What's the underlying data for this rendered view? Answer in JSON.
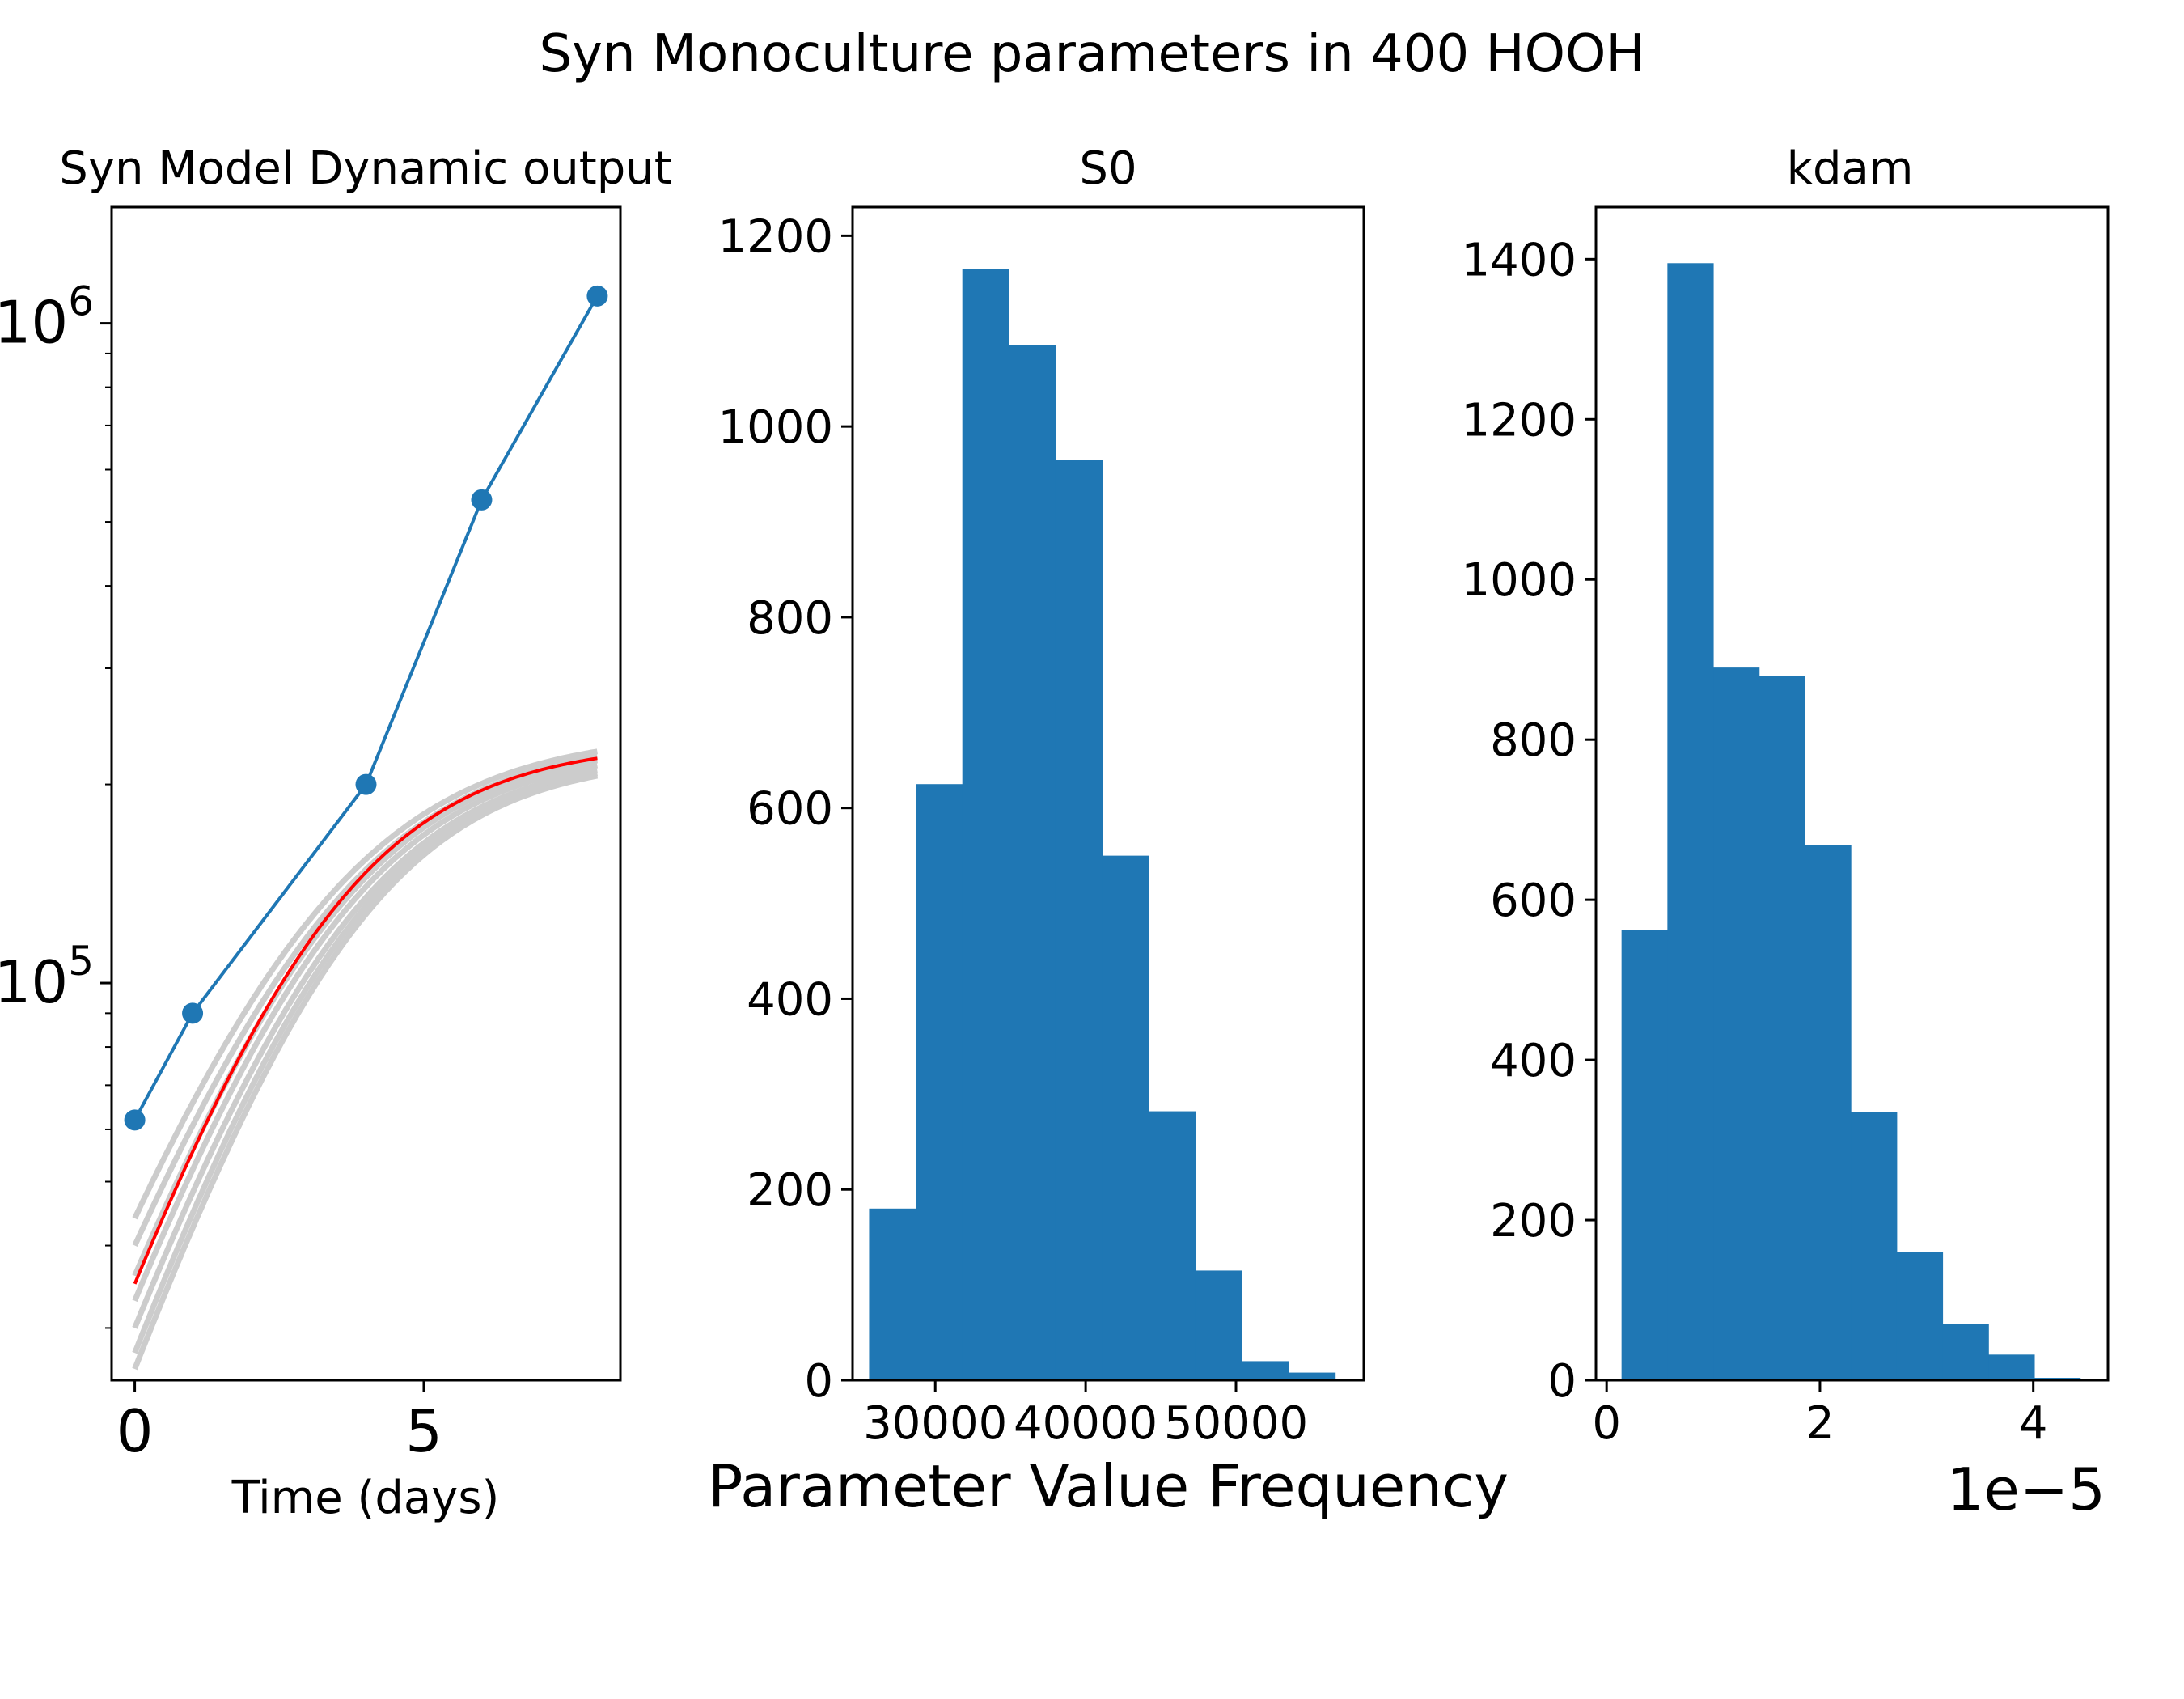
{
  "figure": {
    "suptitle": "Syn Monoculture parameters in 400 HOOH",
    "bottom_label": "Parameter Value Frequency",
    "colors": {
      "data_blue": "#1f77b4",
      "model_red": "#ff0000",
      "ensemble_gray": "#cccccc",
      "bar_blue": "#1f77b4"
    }
  },
  "chart_data": [
    {
      "type": "line",
      "title": "Syn Model Dynamic output",
      "xlabel": "Time (days)",
      "ylabel": "",
      "yscale": "log",
      "xlim": [
        -0.4,
        8.4
      ],
      "ylim": [
        25000,
        1500000
      ],
      "xticks": [
        0,
        5
      ],
      "xtick_labels": [
        "0",
        "5"
      ],
      "yticks": [
        100000,
        1000000
      ],
      "ytick_labels": [
        "10^5",
        "10^6"
      ],
      "series": [
        {
          "style": "data",
          "color": "#1f77b4",
          "marker": "circle",
          "x": [
            0,
            1,
            4,
            6,
            8
          ],
          "y": [
            62000,
            90000,
            200000,
            540000,
            1100000
          ]
        },
        {
          "style": "best-fit",
          "color": "#ff0000",
          "model": {
            "n0": 35000,
            "rate": 0.57,
            "cap": 232000
          }
        },
        {
          "style": "ensemble",
          "color": "#cccccc",
          "models": [
            {
              "n0": 44000,
              "rate": 0.52,
              "cap": 240000
            },
            {
              "n0": 40000,
              "rate": 0.53,
              "cap": 236000
            },
            {
              "n0": 36000,
              "rate": 0.55,
              "cap": 232000
            },
            {
              "n0": 33000,
              "rate": 0.56,
              "cap": 228000
            },
            {
              "n0": 30000,
              "rate": 0.57,
              "cap": 224000
            },
            {
              "n0": 27500,
              "rate": 0.58,
              "cap": 222000
            },
            {
              "n0": 26000,
              "rate": 0.58,
              "cap": 221000
            }
          ]
        }
      ]
    },
    {
      "type": "bar",
      "title": "S0",
      "xlabel": "",
      "ylabel": "",
      "xlim": [
        24500,
        58500
      ],
      "ylim": [
        0,
        1230
      ],
      "bin_edges": [
        25600,
        28700,
        31800,
        34900,
        38000,
        41100,
        44200,
        47300,
        50400,
        53500,
        56600
      ],
      "values": [
        180,
        625,
        1165,
        1085,
        965,
        550,
        282,
        115,
        20,
        8
      ],
      "xticks": [
        30000,
        40000,
        50000
      ],
      "xtick_labels": [
        "30000",
        "40000",
        "50000"
      ],
      "yticks": [
        0,
        200,
        400,
        600,
        800,
        1000,
        1200
      ],
      "ytick_labels": [
        "0",
        "200",
        "400",
        "600",
        "800",
        "1000",
        "1200"
      ]
    },
    {
      "type": "bar",
      "title": "kdam",
      "xlabel": "",
      "ylabel": "",
      "offset_text": "1e−5",
      "xlim": [
        -0.1,
        4.7
      ],
      "ylim": [
        0,
        1465
      ],
      "bin_edges": [
        0.14,
        0.57,
        1.0,
        1.43,
        1.86,
        2.29,
        2.72,
        3.15,
        3.58,
        4.01,
        4.44
      ],
      "values": [
        562,
        1395,
        890,
        880,
        668,
        335,
        160,
        70,
        32,
        3
      ],
      "xticks": [
        0,
        2,
        4
      ],
      "xtick_labels": [
        "0",
        "2",
        "4"
      ],
      "yticks": [
        0,
        200,
        400,
        600,
        800,
        1000,
        1200,
        1400
      ],
      "ytick_labels": [
        "0",
        "200",
        "400",
        "600",
        "800",
        "1000",
        "1200",
        "1400"
      ]
    }
  ]
}
